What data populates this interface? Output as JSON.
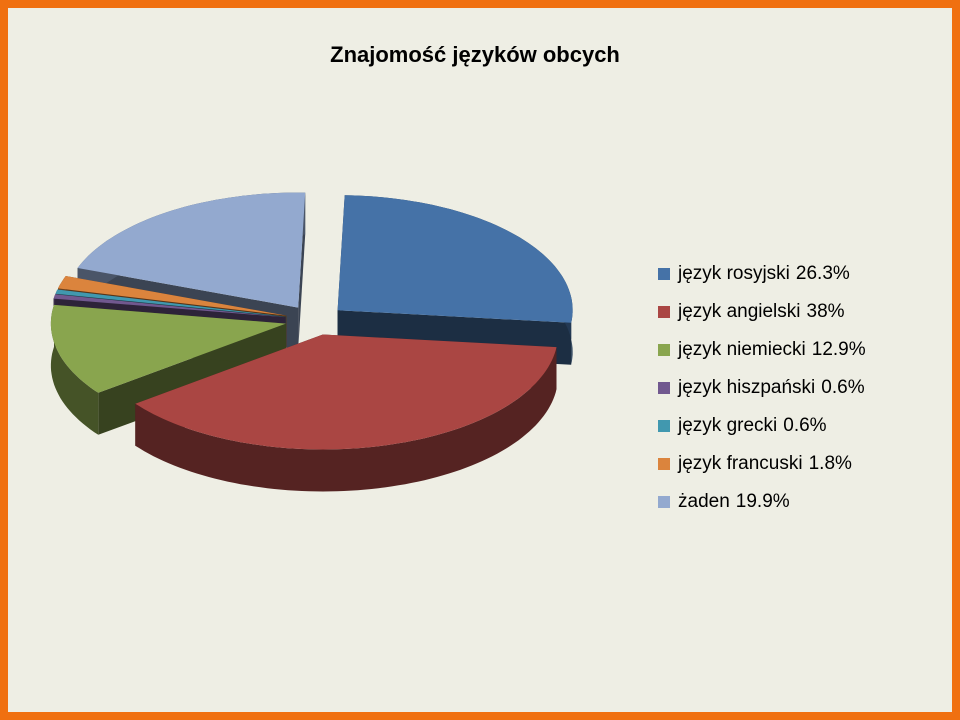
{
  "chart_data": {
    "type": "pie",
    "title": "Znajomość języków obcych",
    "categories": [
      "język rosyjski",
      "język angielski",
      "język niemiecki",
      "język hiszpański",
      "język grecki",
      "język francuski",
      "żaden"
    ],
    "values": [
      26.3,
      38,
      12.9,
      0.6,
      0.6,
      1.8,
      19.9
    ],
    "value_labels": [
      "26.3%",
      "38%",
      "12.9%",
      "0.6%",
      "0.6%",
      "1.8%",
      "19.9%"
    ],
    "colors": [
      "#4572a7",
      "#aa4643",
      "#89a54e",
      "#71588f",
      "#4198af",
      "#db843d",
      "#93a9cf"
    ],
    "legend": "right"
  }
}
